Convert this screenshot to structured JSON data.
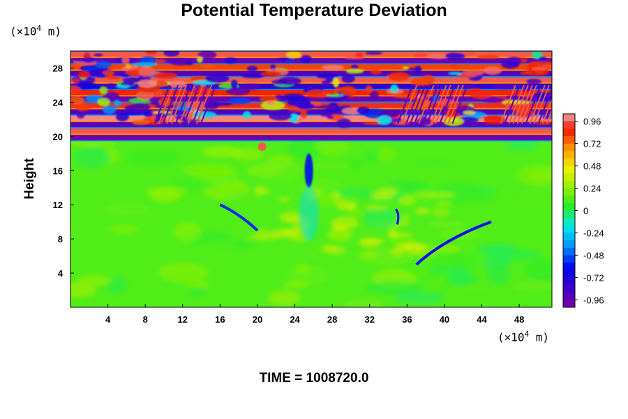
{
  "chart_data": {
    "type": "heatmap",
    "title": "Potential Temperature Deviation",
    "ylabel": "Height",
    "xlabel": "",
    "x_unit": {
      "prefix": "(×10",
      "exp": "4",
      "suffix": " m)"
    },
    "y_unit": {
      "prefix": "(×10",
      "exp": "4",
      "suffix": " m)"
    },
    "xlim": [
      0,
      51.5
    ],
    "ylim": [
      0,
      30
    ],
    "x_ticks": [
      4,
      8,
      12,
      16,
      20,
      24,
      28,
      32,
      36,
      40,
      44,
      48
    ],
    "y_ticks": [
      4,
      8,
      12,
      16,
      20,
      24,
      28
    ],
    "colorbar": {
      "range": [
        -1.04,
        1.04
      ],
      "tick_values": [
        0.96,
        0.72,
        0.48,
        0.24,
        0,
        -0.24,
        -0.48,
        -0.72,
        -0.96
      ],
      "tick_labels": [
        "0.96",
        "0.72",
        "0.48",
        "0.24",
        "0",
        "-0.24",
        "-0.48",
        "-0.72",
        "-0.96"
      ],
      "levels": 26
    },
    "regions": [
      {
        "description_zone": "background",
        "y_range": [
          0,
          19.5
        ],
        "value": 0.12
      },
      {
        "zone": "stratified_bands",
        "y_range": [
          19.5,
          30
        ],
        "value_range": [
          -1.0,
          1.0
        ]
      },
      {
        "zone": "cold_column",
        "x": 25.5,
        "y_range": [
          14,
          18
        ],
        "value": -0.6
      },
      {
        "zone": "cold_streak_left",
        "x_range": [
          16,
          20
        ],
        "y_range": [
          9,
          12
        ],
        "value": -0.55
      },
      {
        "zone": "cold_streak_right",
        "x_range": [
          37,
          45
        ],
        "y_range": [
          5,
          10
        ],
        "value": -0.6
      },
      {
        "zone": "warm_spot",
        "x": 20.5,
        "y": 18.8,
        "value": 0.95
      }
    ]
  },
  "annotations": {
    "time_label": "TIME = 1008720.0"
  },
  "colors": {
    "background": "#ffffff",
    "field_neutral": "#33ee22",
    "max": "#f8a8a8",
    "min": "#7a00a8"
  }
}
